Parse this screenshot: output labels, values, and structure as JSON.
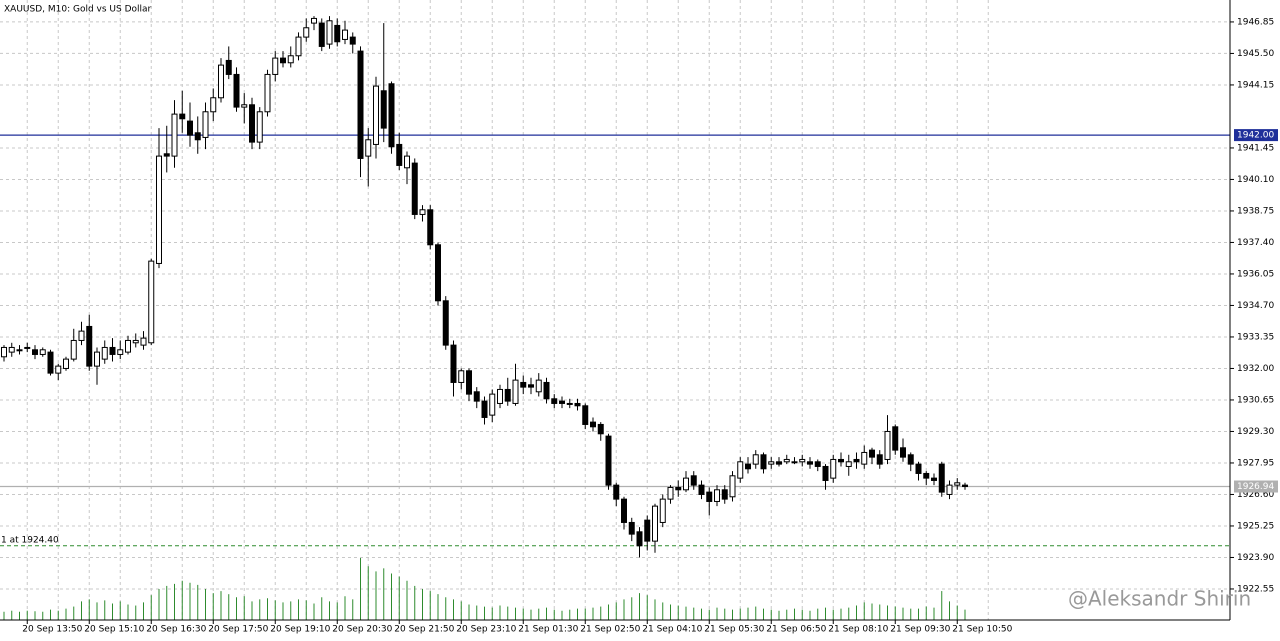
{
  "chart_data": {
    "type": "candlestick",
    "title": "XAUUSD, M10:  Gold vs US Dollar",
    "watermark": "@Aleksandr Shirin",
    "categories": [
      null,
      null,
      null,
      "20 Sep 13:50",
      null,
      null,
      null,
      null,
      null,
      null,
      null,
      "20 Sep 15:10",
      null,
      null,
      null,
      null,
      null,
      null,
      null,
      "20 Sep 16:30",
      null,
      null,
      null,
      null,
      null,
      null,
      null,
      "20 Sep 17:50",
      null,
      null,
      null,
      null,
      null,
      null,
      null,
      "20 Sep 19:10",
      null,
      null,
      null,
      null,
      null,
      null,
      null,
      "20 Sep 20:30",
      null,
      null,
      null,
      null,
      null,
      null,
      null,
      "20 Sep 21:50",
      null,
      null,
      null,
      null,
      null,
      null,
      null,
      "20 Sep 23:10",
      null,
      null,
      null,
      null,
      null,
      null,
      null,
      "21 Sep 01:30",
      null,
      null,
      null,
      null,
      null,
      null,
      null,
      "21 Sep 02:50",
      null,
      null,
      null,
      null,
      null,
      null,
      null,
      "21 Sep 04:10",
      null,
      null,
      null,
      null,
      null,
      null,
      null,
      "21 Sep 05:30",
      null,
      null,
      null,
      null,
      null,
      null,
      null,
      "21 Sep 06:50",
      null,
      null,
      null,
      null,
      null,
      null,
      null,
      "21 Sep 08:10",
      null,
      null,
      null,
      null,
      null,
      null,
      null,
      "21 Sep 09:30",
      null,
      null,
      null,
      null,
      null,
      null,
      null,
      "21 Sep 10:50",
      null
    ],
    "open": [
      1932.5,
      1932.7,
      1932.8,
      1932.9,
      1932.8,
      1932.6,
      1932.7,
      1931.8,
      1932.0,
      1932.4,
      1933.2,
      1933.8,
      1932.1,
      1932.4,
      1932.9,
      1932.6,
      1932.7,
      1933.1,
      1933.0,
      1933.1,
      1936.5,
      1941.2,
      1941.1,
      1942.9,
      1942.6,
      1942.1,
      1941.9,
      1943.0,
      1943.6,
      1945.2,
      1944.6,
      1943.2,
      1943.3,
      1941.7,
      1943.0,
      1944.6,
      1945.3,
      1945.1,
      1945.4,
      1946.2,
      1946.8,
      1946.8,
      1945.9,
      1946.7,
      1946.1,
      1946.2,
      1945.6,
      1941.1,
      1941.6,
      1943.9,
      1944.2,
      1941.6,
      1940.6,
      1940.8,
      1938.6,
      1938.8,
      1937.3,
      1934.9,
      1933.0,
      1931.4,
      1931.9,
      1931.0,
      1930.6,
      1930.0,
      1930.5,
      1931.1,
      1930.5,
      1931.4,
      1931.3,
      1931.0,
      1931.4,
      1930.7,
      1930.6,
      1930.5,
      1930.5,
      1930.4,
      1929.7,
      1929.6,
      1929.1,
      1927.0,
      1926.4,
      1925.4,
      1925.0,
      1925.5,
      1924.6,
      1925.4,
      1926.4,
      1926.9,
      1926.8,
      1927.4,
      1927.0,
      1926.7,
      1926.3,
      1926.8,
      1926.5,
      1927.3,
      1927.9,
      1927.9,
      1928.3,
      1927.9,
      1928.0,
      1928.0,
      1928.0,
      1928.0,
      1928.0,
      1928.0,
      1927.8,
      1927.3,
      1928.1,
      1927.8,
      1928.1,
      1927.9,
      1928.5,
      1928.3,
      1928.1,
      1929.5,
      1928.6,
      1928.3,
      1927.9,
      1927.5,
      1927.3,
      1927.9,
      1926.6,
      1927.0,
      1927.0
    ],
    "high": [
      1933.0,
      1933.1,
      1933.0,
      1933.1,
      1933.0,
      1932.9,
      1932.8,
      1932.2,
      1932.5,
      1933.7,
      1934.0,
      1934.3,
      1932.9,
      1933.2,
      1933.3,
      1933.2,
      1933.4,
      1933.5,
      1933.6,
      1936.7,
      1942.3,
      1942.4,
      1943.5,
      1943.9,
      1943.4,
      1942.8,
      1943.4,
      1944.0,
      1945.3,
      1945.8,
      1944.9,
      1943.8,
      1943.6,
      1943.2,
      1944.8,
      1945.6,
      1945.6,
      1945.8,
      1946.4,
      1947.0,
      1947.1,
      1947.0,
      1947.1,
      1947.0,
      1946.9,
      1946.4,
      1945.8,
      1942.3,
      1944.5,
      1946.8,
      1944.3,
      1942.1,
      1941.3,
      1941.0,
      1939.0,
      1939.0,
      1937.4,
      1935.1,
      1933.2,
      1932.0,
      1932.0,
      1931.2,
      1930.8,
      1931.1,
      1931.3,
      1931.6,
      1932.2,
      1931.7,
      1931.6,
      1931.8,
      1931.6,
      1930.9,
      1930.8,
      1930.7,
      1930.7,
      1930.5,
      1929.9,
      1929.7,
      1929.2,
      1927.1,
      1926.5,
      1925.6,
      1925.2,
      1925.7,
      1926.2,
      1926.6,
      1927.0,
      1927.2,
      1927.6,
      1927.6,
      1927.2,
      1926.9,
      1927.0,
      1927.0,
      1927.6,
      1928.2,
      1928.2,
      1928.5,
      1928.4,
      1928.2,
      1928.2,
      1928.3,
      1928.2,
      1928.3,
      1928.2,
      1928.1,
      1927.9,
      1928.3,
      1928.4,
      1928.3,
      1928.4,
      1928.7,
      1928.6,
      1928.5,
      1930.0,
      1929.6,
      1929.0,
      1928.4,
      1928.0,
      1927.6,
      1927.5,
      1928.0,
      1927.2,
      1927.3,
      1927.1
    ],
    "low": [
      1932.3,
      1932.5,
      1932.6,
      1932.7,
      1932.4,
      1932.5,
      1931.7,
      1931.5,
      1931.9,
      1932.3,
      1933.0,
      1931.9,
      1931.3,
      1932.2,
      1932.3,
      1932.4,
      1932.6,
      1932.9,
      1932.8,
      1933.0,
      1936.3,
      1940.4,
      1940.6,
      1942.1,
      1941.5,
      1941.2,
      1941.4,
      1942.6,
      1943.4,
      1944.4,
      1943.0,
      1942.5,
      1941.4,
      1941.4,
      1942.8,
      1944.3,
      1944.9,
      1944.9,
      1945.2,
      1946.0,
      1946.5,
      1945.6,
      1945.7,
      1945.8,
      1945.9,
      1945.5,
      1940.2,
      1939.8,
      1941.0,
      1941.7,
      1941.2,
      1940.5,
      1939.9,
      1938.4,
      1938.3,
      1937.1,
      1934.7,
      1932.8,
      1930.8,
      1931.1,
      1930.6,
      1930.3,
      1929.6,
      1929.7,
      1930.3,
      1930.4,
      1930.4,
      1930.9,
      1930.9,
      1930.8,
      1930.5,
      1930.3,
      1930.3,
      1930.3,
      1930.2,
      1929.4,
      1929.3,
      1928.9,
      1926.8,
      1926.1,
      1925.1,
      1924.6,
      1923.9,
      1924.2,
      1924.1,
      1925.2,
      1926.2,
      1926.5,
      1926.7,
      1926.8,
      1926.4,
      1925.7,
      1926.1,
      1926.2,
      1926.3,
      1927.1,
      1927.5,
      1927.7,
      1927.5,
      1927.7,
      1927.8,
      1927.9,
      1927.9,
      1927.8,
      1927.7,
      1927.6,
      1926.8,
      1927.1,
      1927.8,
      1927.4,
      1927.7,
      1927.7,
      1927.9,
      1927.7,
      1927.9,
      1928.3,
      1928.0,
      1927.6,
      1927.2,
      1927.0,
      1927.0,
      1926.5,
      1926.4,
      1926.8,
      1926.8
    ],
    "close": [
      1932.9,
      1932.9,
      1932.8,
      1932.9,
      1932.6,
      1932.8,
      1931.8,
      1932.1,
      1932.4,
      1933.2,
      1933.6,
      1932.1,
      1932.7,
      1932.9,
      1932.6,
      1932.8,
      1933.2,
      1933.2,
      1933.3,
      1936.6,
      1941.1,
      1941.1,
      1942.9,
      1942.7,
      1942.0,
      1941.8,
      1943.0,
      1943.6,
      1945.0,
      1944.6,
      1943.2,
      1943.3,
      1941.7,
      1943.0,
      1944.6,
      1945.3,
      1945.1,
      1945.4,
      1946.2,
      1946.6,
      1947.0,
      1945.8,
      1946.9,
      1946.0,
      1946.5,
      1945.9,
      1941.0,
      1941.8,
      1944.1,
      1942.3,
      1941.5,
      1940.7,
      1941.1,
      1938.6,
      1938.8,
      1937.3,
      1934.9,
      1933.0,
      1931.4,
      1931.9,
      1930.9,
      1930.6,
      1929.9,
      1930.9,
      1931.1,
      1930.6,
      1931.5,
      1931.2,
      1931.2,
      1931.5,
      1930.7,
      1930.5,
      1930.5,
      1930.5,
      1930.4,
      1929.6,
      1929.5,
      1929.2,
      1927.0,
      1926.4,
      1925.4,
      1924.9,
      1924.4,
      1924.6,
      1926.1,
      1926.4,
      1926.9,
      1926.8,
      1927.3,
      1927.0,
      1926.6,
      1926.3,
      1926.8,
      1926.4,
      1927.4,
      1928.0,
      1927.7,
      1928.3,
      1927.7,
      1928.0,
      1927.9,
      1928.1,
      1928.0,
      1928.1,
      1927.9,
      1927.8,
      1927.2,
      1928.1,
      1928.0,
      1928.0,
      1928.0,
      1928.4,
      1928.2,
      1927.9,
      1929.3,
      1928.5,
      1928.2,
      1927.9,
      1927.5,
      1927.3,
      1927.2,
      1926.7,
      1927.0,
      1927.1,
      1926.94
    ],
    "volumes": [
      80,
      90,
      80,
      90,
      85,
      80,
      100,
      90,
      110,
      130,
      180,
      200,
      170,
      190,
      160,
      180,
      150,
      140,
      170,
      240,
      300,
      330,
      350,
      380,
      360,
      340,
      300,
      260,
      280,
      250,
      220,
      230,
      180,
      200,
      210,
      190,
      170,
      180,
      200,
      190,
      160,
      220,
      180,
      170,
      230,
      200,
      600,
      520,
      470,
      500,
      450,
      420,
      380,
      330,
      300,
      280,
      250,
      220,
      200,
      180,
      150,
      140,
      130,
      120,
      140,
      130,
      120,
      110,
      100,
      110,
      120,
      100,
      90,
      100,
      110,
      110,
      120,
      130,
      150,
      170,
      200,
      220,
      260,
      240,
      200,
      170,
      150,
      140,
      130,
      120,
      110,
      100,
      120,
      110,
      100,
      110,
      120,
      130,
      110,
      100,
      90,
      100,
      110,
      100,
      90,
      110,
      120,
      100,
      110,
      120,
      140,
      170,
      160,
      150,
      140,
      130,
      120,
      110,
      110,
      130,
      120,
      280,
      180,
      140,
      100
    ],
    "bull_color": "#ffffff",
    "bear_color": "#000000",
    "volume_color": "#2e8b2e",
    "ylim": [
      1921.22,
      1947.79
    ],
    "yticks": [
      {
        "value": 1946.85,
        "label": "1946.85"
      },
      {
        "value": 1945.5,
        "label": "1945.50"
      },
      {
        "value": 1944.15,
        "label": "1944.15"
      },
      {
        "value": 1941.45,
        "label": "1941.45"
      },
      {
        "value": 1940.1,
        "label": "1940.10"
      },
      {
        "value": 1938.75,
        "label": "1938.75"
      },
      {
        "value": 1937.4,
        "label": "1937.40"
      },
      {
        "value": 1936.05,
        "label": "1936.05"
      },
      {
        "value": 1934.7,
        "label": "1934.70"
      },
      {
        "value": 1933.35,
        "label": "1933.35"
      },
      {
        "value": 1932,
        "label": "1932.00"
      },
      {
        "value": 1930.65,
        "label": "1930.65"
      },
      {
        "value": 1929.3,
        "label": "1929.30"
      },
      {
        "value": 1927.95,
        "label": "1927.95"
      },
      {
        "value": 1926.6,
        "label": "1926.60"
      },
      {
        "value": 1925.25,
        "label": "1925.25"
      },
      {
        "value": 1923.9,
        "label": "1923.90"
      },
      {
        "value": 1922.55,
        "label": "1922.55"
      }
    ],
    "grid": true,
    "levels": [
      {
        "value": 1942,
        "label": "1942.00",
        "color": "#1f2f9a"
      },
      {
        "value": 1926.94,
        "label": "1926.94",
        "color": "#b0b0b0"
      }
    ],
    "order_line": {
      "value": 1924.4,
      "text": "1 at 1924.40",
      "color": "#2e8b2e"
    }
  }
}
